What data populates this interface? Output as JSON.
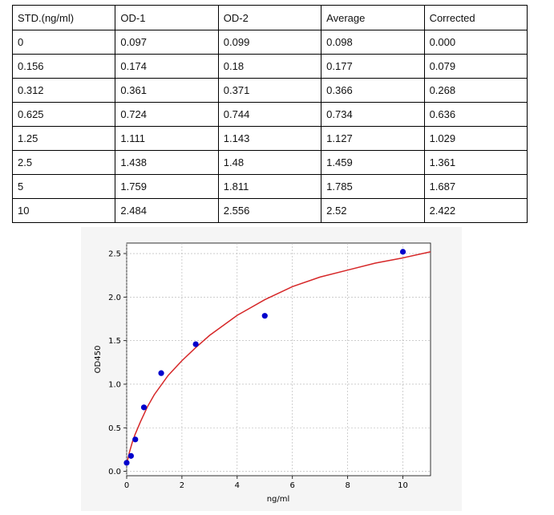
{
  "table": {
    "headers": [
      "STD.(ng/ml)",
      "OD-1",
      "OD-2",
      "Average",
      "Corrected"
    ],
    "rows": [
      [
        "0",
        "0.097",
        "0.099",
        "0.098",
        "0.000"
      ],
      [
        "0.156",
        "0.174",
        "0.18",
        "0.177",
        "0.079"
      ],
      [
        "0.312",
        "0.361",
        "0.371",
        "0.366",
        "0.268"
      ],
      [
        "0.625",
        "0.724",
        "0.744",
        "0.734",
        "0.636"
      ],
      [
        "1.25",
        "1.111",
        "1.143",
        "1.127",
        "1.029"
      ],
      [
        "2.5",
        "1.438",
        "1.48",
        "1.459",
        "1.361"
      ],
      [
        "5",
        "1.759",
        "1.811",
        "1.785",
        "1.687"
      ],
      [
        "10",
        "2.484",
        "2.556",
        "2.52",
        "2.422"
      ]
    ]
  },
  "chart_data": {
    "type": "scatter",
    "xlabel": "ng/ml",
    "ylabel": "OD450",
    "xlim": [
      0,
      11
    ],
    "ylim": [
      -0.05,
      2.62
    ],
    "xticks": [
      "0",
      "2",
      "4",
      "6",
      "8",
      "10"
    ],
    "yticks": [
      "0.0",
      "0.5",
      "1.0",
      "1.5",
      "2.0",
      "2.5"
    ],
    "grid": true,
    "series": [
      {
        "kind": "points",
        "color": "#0000cc",
        "x": [
          0,
          0.156,
          0.312,
          0.625,
          1.25,
          2.5,
          5,
          10
        ],
        "y": [
          0.098,
          0.177,
          0.366,
          0.734,
          1.127,
          1.459,
          1.785,
          2.52
        ]
      },
      {
        "kind": "fit-curve",
        "color": "#d62728",
        "x": [
          0,
          0.1,
          0.2,
          0.3,
          0.5,
          0.75,
          1,
          1.5,
          2,
          2.5,
          3,
          4,
          5,
          6,
          7,
          8,
          9,
          10,
          11
        ],
        "y": [
          0.08,
          0.22,
          0.33,
          0.42,
          0.57,
          0.74,
          0.88,
          1.1,
          1.27,
          1.42,
          1.56,
          1.79,
          1.97,
          2.12,
          2.23,
          2.31,
          2.39,
          2.45,
          2.52
        ]
      }
    ]
  }
}
